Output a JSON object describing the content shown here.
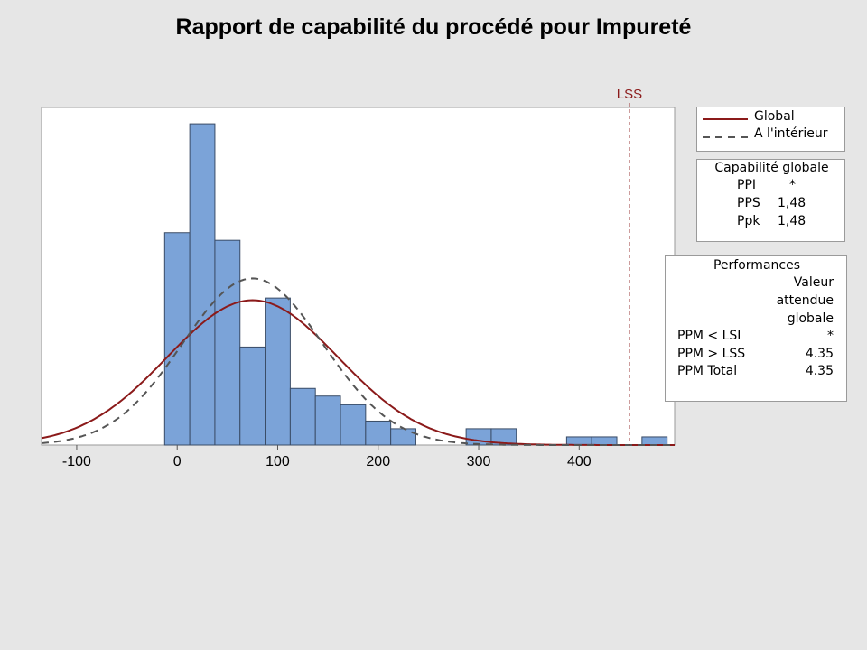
{
  "chart_data": {
    "type": "histogram",
    "title": "Rapport de capabilité du procédé pour Impureté",
    "xlim": [
      -135,
      495
    ],
    "ylim": [
      0,
      31
    ],
    "x_ticks": [
      -100,
      0,
      100,
      200,
      300,
      400
    ],
    "bin_width": 25,
    "bins": [
      {
        "start": -12.5,
        "count": 19.5
      },
      {
        "start": 12.5,
        "count": 29.5
      },
      {
        "start": 37.5,
        "count": 18.8
      },
      {
        "start": 62.5,
        "count": 9.0
      },
      {
        "start": 87.5,
        "count": 13.5
      },
      {
        "start": 112.5,
        "count": 5.2
      },
      {
        "start": 137.5,
        "count": 4.5
      },
      {
        "start": 162.5,
        "count": 3.7
      },
      {
        "start": 187.5,
        "count": 2.2
      },
      {
        "start": 212.5,
        "count": 1.5
      },
      {
        "start": 287.5,
        "count": 1.5
      },
      {
        "start": 312.5,
        "count": 1.5
      },
      {
        "start": 387.5,
        "count": 0.75
      },
      {
        "start": 412.5,
        "count": 0.75
      },
      {
        "start": 462.5,
        "count": 0.75
      }
    ],
    "lss": {
      "value": 450,
      "label": "LSS",
      "color": "#8b1a1a"
    },
    "curves": [
      {
        "name": "Global",
        "style": "solid",
        "color": "#8b1a1a",
        "mean": 75,
        "sd": 85,
        "peak": 13.3
      },
      {
        "name": "A l'intérieur",
        "style": "dashed",
        "color": "#555555",
        "mean": 75,
        "sd": 70,
        "peak": 15.3
      }
    ],
    "bar_fill": "#7ba3d8",
    "bar_stroke": "#3a4c66"
  },
  "legend": {
    "global": "Global",
    "within": "A l'intérieur"
  },
  "capability": {
    "title": "Capabilité globale",
    "rows": [
      {
        "label": "PPI",
        "value": "*"
      },
      {
        "label": "PPS",
        "value": "1,48"
      },
      {
        "label": "Ppk",
        "value": "1,48"
      }
    ]
  },
  "performance": {
    "title": "Performances",
    "col_header": [
      "Valeur",
      "attendue",
      "globale"
    ],
    "rows": [
      {
        "label": "PPM < LSI",
        "value": "*"
      },
      {
        "label": "PPM > LSS",
        "value": "4.35"
      },
      {
        "label": "PPM Total",
        "value": "4.35"
      }
    ]
  }
}
